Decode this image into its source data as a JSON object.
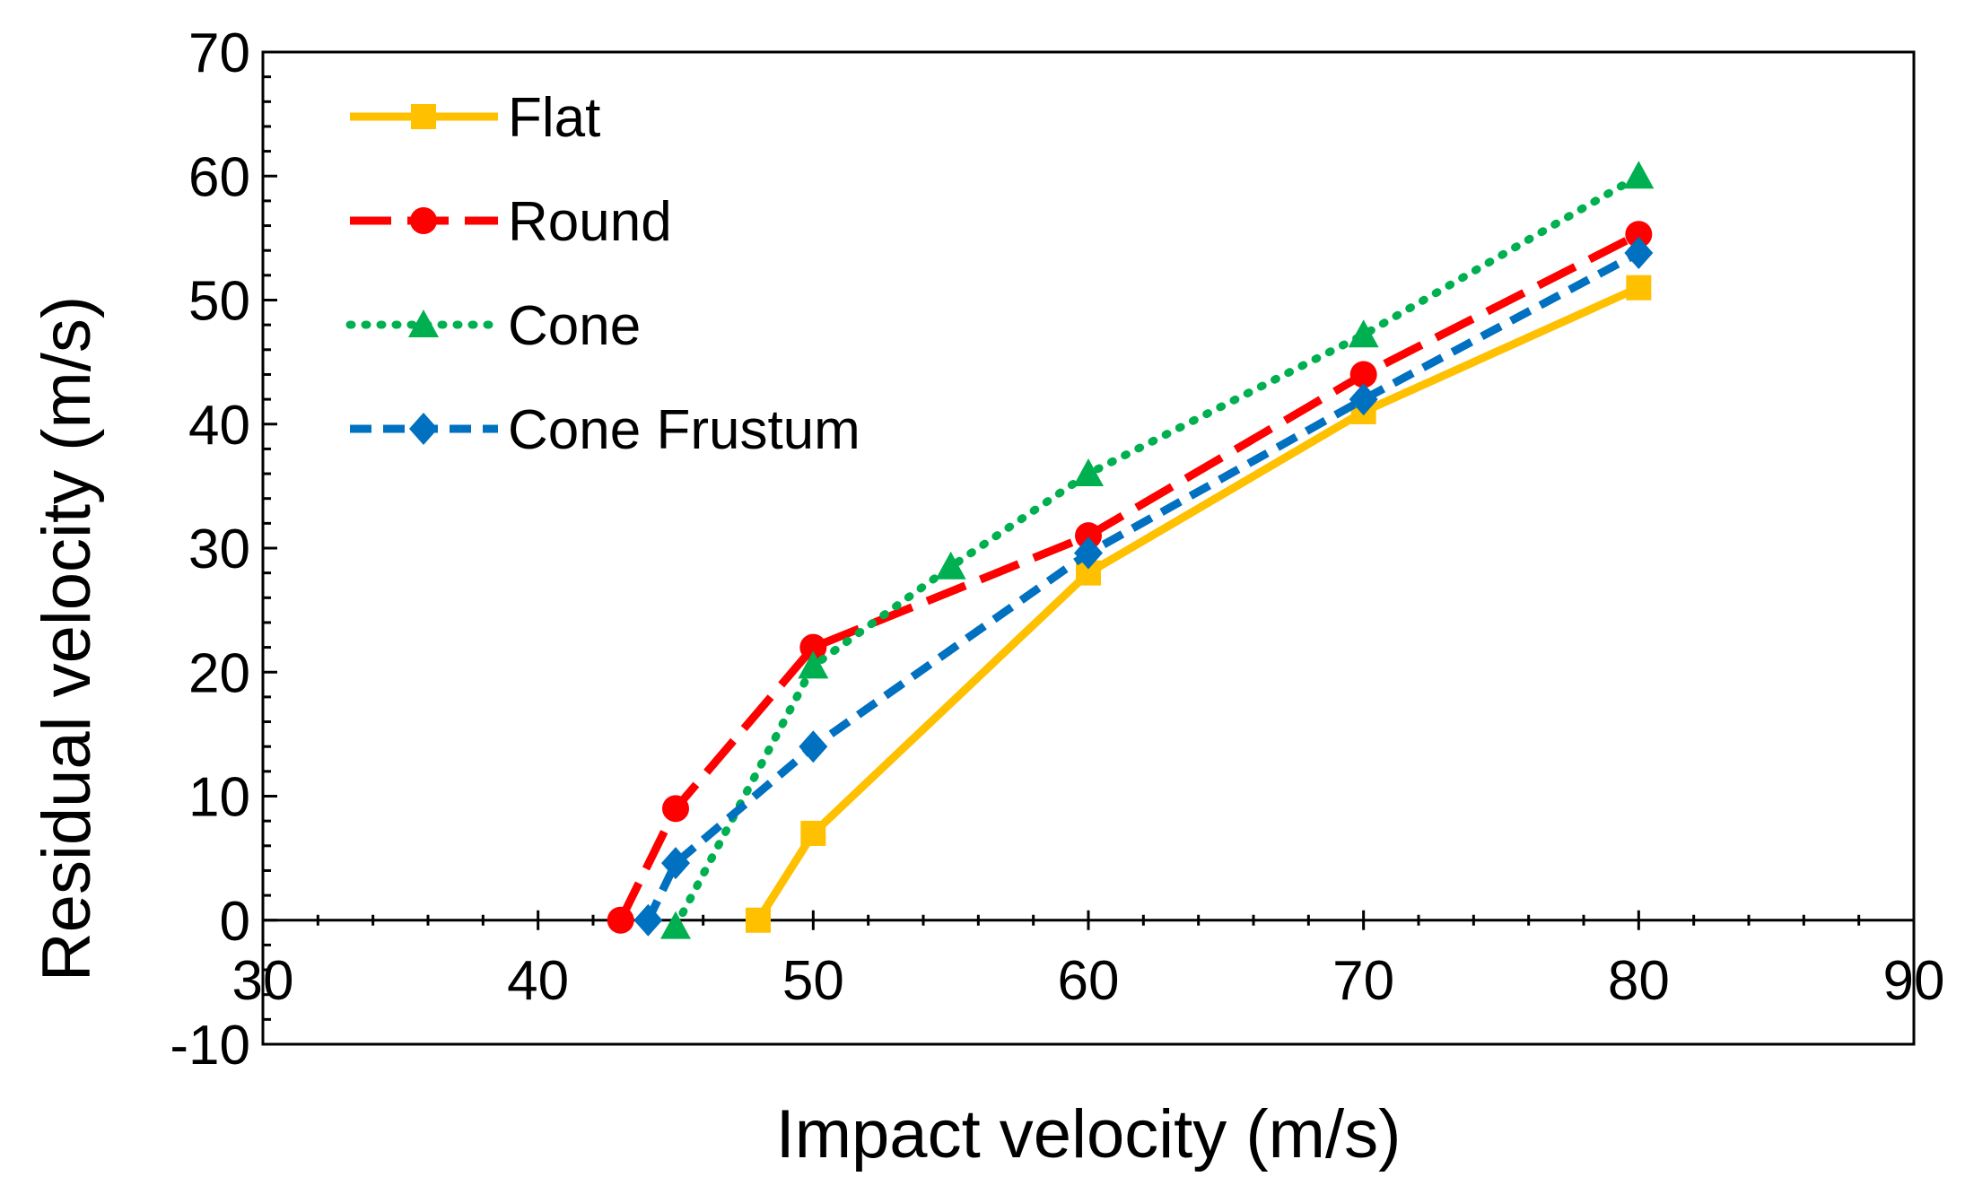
{
  "chart_data": {
    "type": "line",
    "title": "",
    "xlabel": "Impact velocity (m/s)",
    "ylabel": "Residual velocity (m/s)",
    "xlim": [
      30,
      90
    ],
    "ylim": [
      -10,
      70
    ],
    "xticks": [
      30,
      40,
      50,
      60,
      70,
      80,
      90
    ],
    "yticks": [
      -10,
      0,
      10,
      20,
      30,
      40,
      50,
      60,
      70
    ],
    "x_axis_crosses_at": 0,
    "grid": false,
    "legend": "top-left",
    "series": [
      {
        "name": "Flat",
        "color": "#FFC000",
        "dash": "solid",
        "marker": "square",
        "x": [
          48,
          50,
          60,
          70,
          80
        ],
        "y": [
          0,
          7,
          28,
          41,
          51
        ]
      },
      {
        "name": "Round",
        "color": "#FF0000",
        "dash": "long-dash",
        "marker": "circle",
        "x": [
          43,
          45,
          50,
          60,
          70,
          80
        ],
        "y": [
          0,
          9,
          22,
          31,
          44,
          55.3
        ]
      },
      {
        "name": "Cone",
        "color": "#00B050",
        "dash": "dotted",
        "marker": "triangle",
        "x": [
          45,
          50,
          55,
          60,
          70,
          80
        ],
        "y": [
          -0.5,
          20.5,
          28.5,
          36,
          47.2,
          60
        ]
      },
      {
        "name": "Cone Frustum",
        "color": "#0070C0",
        "dash": "dashed",
        "marker": "diamond",
        "x": [
          44,
          45,
          50,
          60,
          70,
          80
        ],
        "y": [
          0,
          4.6,
          14,
          29.6,
          42,
          53.8
        ]
      }
    ]
  }
}
